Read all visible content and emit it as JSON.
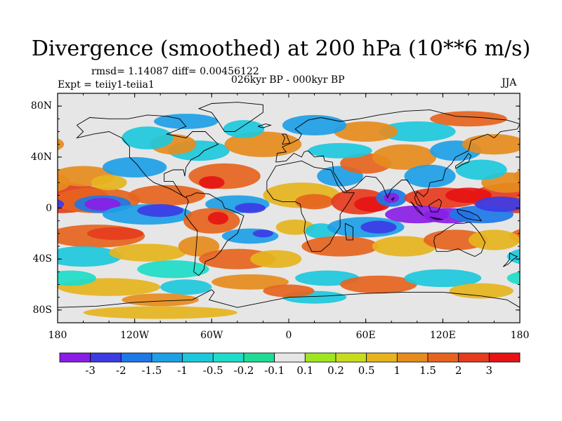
{
  "title": "Divergence (smoothed) at 200 hPa (10**6 m/s)",
  "stats": "rmsd= 1.14087 diff= 0.00456122",
  "experiment": "Expt = teiiy1-teiia1",
  "period": "026kyr BP - 000kyr BP",
  "season": "JJA",
  "lat_ticks": [
    "80N",
    "40N",
    "0",
    "40S",
    "80S"
  ],
  "lon_ticks": [
    "180",
    "120W",
    "60W",
    "0",
    "60E",
    "120E",
    "180"
  ],
  "colorbar": {
    "labels": [
      "-3",
      "-2",
      "-1.5",
      "-1",
      "-0.5",
      "-0.2",
      "-0.1",
      "0.1",
      "0.2",
      "0.5",
      "1",
      "1.5",
      "2",
      "3"
    ],
    "colors": [
      "#8a1ee6",
      "#3c3ce6",
      "#1e78e6",
      "#1ea0e6",
      "#1ec8dc",
      "#1edcc8",
      "#1edc96",
      "#e6e6e6",
      "#a0e61e",
      "#c8dc1e",
      "#e6b41e",
      "#e68c1e",
      "#e6641e",
      "#e63c1e",
      "#e61414"
    ]
  },
  "map": {
    "lon_range": [
      -180,
      180
    ],
    "lat_range": [
      -90,
      90
    ],
    "ocean_color": "#e6e6e6",
    "coast_color": "#000000"
  }
}
